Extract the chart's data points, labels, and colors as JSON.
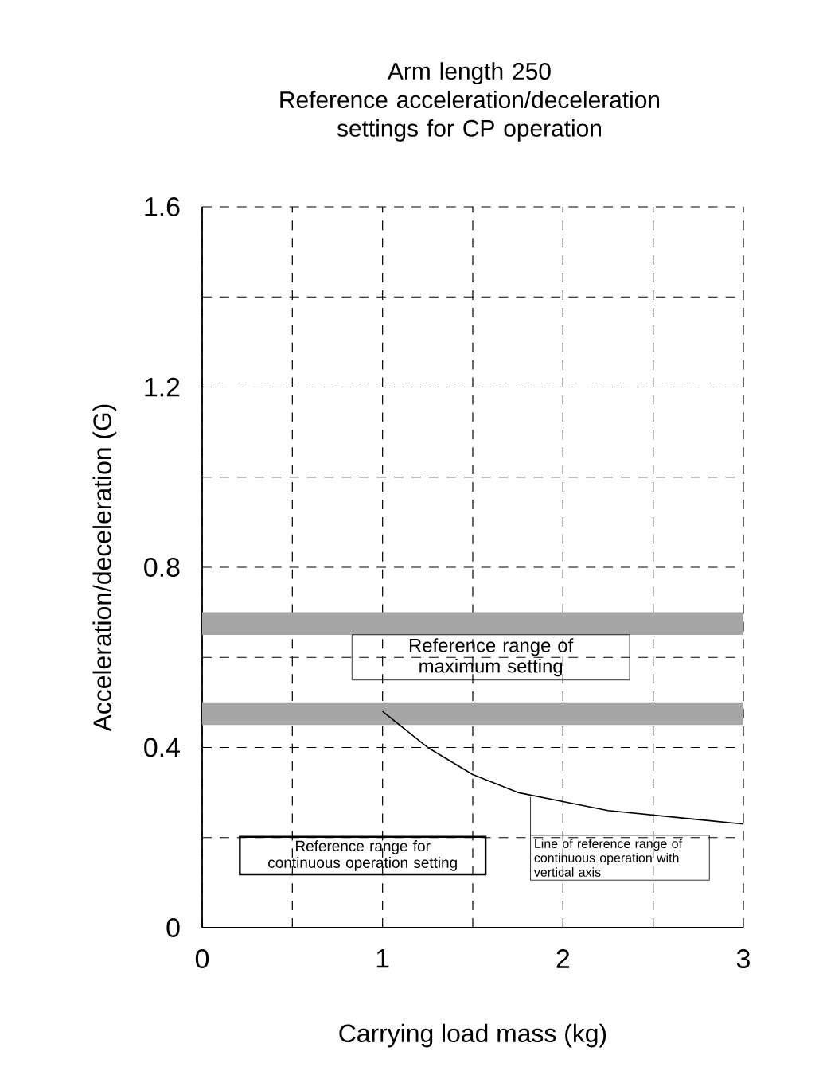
{
  "chart_data": {
    "type": "line",
    "title": "Arm length 250\nReference acceleration/deceleration\nsettings for CP operation",
    "xlabel": "Carrying load mass (kg)",
    "ylabel": "Acceleration/deceleration (G)",
    "xlim": [
      0,
      3
    ],
    "ylim": [
      0,
      1.6
    ],
    "xticks": [
      0,
      {
        "value": 0.5,
        "label": null
      },
      1,
      {
        "value": 1.5,
        "label": null
      },
      2,
      {
        "value": 2.5,
        "label": null
      },
      3
    ],
    "yticks": [
      0,
      {
        "value": 0.2,
        "label": null
      },
      0.4,
      {
        "value": 0.6,
        "label": null
      },
      0.8,
      {
        "value": 1.0,
        "label": null
      },
      1.2,
      {
        "value": 1.4,
        "label": null
      },
      1.6
    ],
    "grid": true,
    "marker": "none",
    "line_style": "solid",
    "series": [
      {
        "name": "Line of reference range of continuous operation with vertical axis",
        "color": "#000000",
        "x": [
          1,
          1.25,
          1.5,
          1.75,
          2,
          2.25,
          2.5,
          2.75,
          3
        ],
        "values": [
          0.48,
          0.4,
          0.34,
          0.3,
          0.28,
          0.26,
          0.25,
          0.24,
          0.23
        ]
      }
    ],
    "bands": [
      {
        "axis": "y",
        "from": 0.65,
        "to": 0.7,
        "label": "Reference range of maximum setting",
        "color": "#a6a6a6"
      },
      {
        "axis": "y",
        "from": 0.45,
        "to": 0.5,
        "color": "#a6a6a6"
      }
    ],
    "annotations": [
      "Reference range for continuous operation setting"
    ]
  }
}
